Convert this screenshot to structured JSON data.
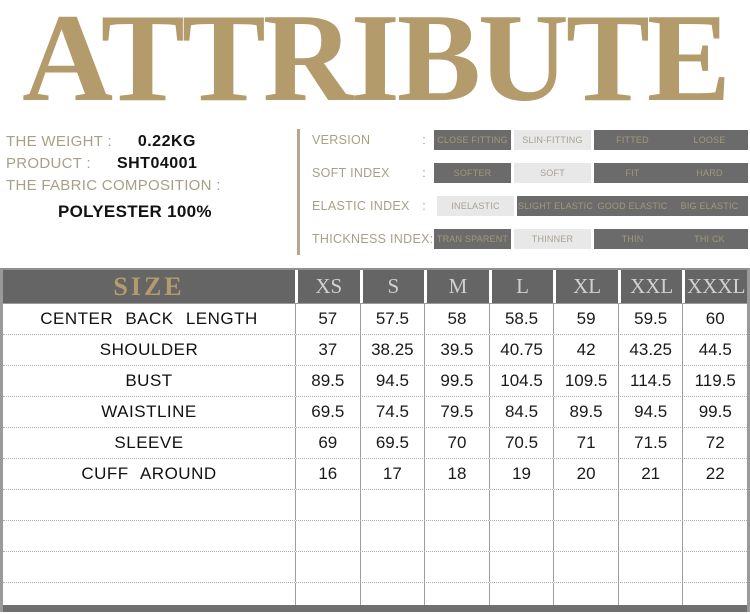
{
  "title": "ATTRIBUTE",
  "info": {
    "weight_label": "THE WEIGHT :",
    "weight_value": "0.22KG",
    "product_label": "PRODUCT :",
    "product_value": "SHT04001",
    "fabric_label": "THE FABRIC COMPOSITION :",
    "fabric_value": "POLYESTER 100%"
  },
  "attributes": {
    "rows": [
      {
        "label": "VERSION",
        "colon": ":",
        "options": [
          {
            "text": "CLOSE FITTING",
            "selected": false
          },
          {
            "text": "SLIN-FITTING",
            "selected": true
          },
          {
            "text": "FITTED",
            "selected": false
          },
          {
            "text": "LOOSE",
            "selected": false
          }
        ]
      },
      {
        "label": "SOFT INDEX",
        "colon": ":",
        "options": [
          {
            "text": "SOFTER",
            "selected": false
          },
          {
            "text": "SOFT",
            "selected": true
          },
          {
            "text": "FIT",
            "selected": false
          },
          {
            "text": "HARD",
            "selected": false
          }
        ]
      },
      {
        "label": "ELASTIC INDEX",
        "colon": ":",
        "options": [
          {
            "text": "INELASTIC",
            "selected": true
          },
          {
            "text": "SLIGHT ELASTIC",
            "selected": false
          },
          {
            "text": "GOOD ELASTIC",
            "selected": false
          },
          {
            "text": "BIG ELASTIC",
            "selected": false
          }
        ]
      },
      {
        "label": "THICKNESS INDEX",
        "colon": ":",
        "options": [
          {
            "text": "TRAN SPARENT",
            "selected": false
          },
          {
            "text": "THINNER",
            "selected": true
          },
          {
            "text": "THIN",
            "selected": false
          },
          {
            "text": "THI CK",
            "selected": false
          }
        ]
      }
    ]
  },
  "size_table": {
    "size_label": "SIZE",
    "columns": [
      "XS",
      "S",
      "M",
      "L",
      "XL",
      "XXL",
      "XXXL"
    ],
    "rows": [
      {
        "label": "CENTER BACK LENGTH",
        "values": [
          "57",
          "57.5",
          "58",
          "58.5",
          "59",
          "59.5",
          "60"
        ]
      },
      {
        "label": "SHOULDER",
        "values": [
          "37",
          "38.25",
          "39.5",
          "40.75",
          "42",
          "43.25",
          "44.5"
        ]
      },
      {
        "label": "BUST",
        "values": [
          "89.5",
          "94.5",
          "99.5",
          "104.5",
          "109.5",
          "114.5",
          "119.5"
        ]
      },
      {
        "label": "WAISTLINE",
        "values": [
          "69.5",
          "74.5",
          "79.5",
          "84.5",
          "89.5",
          "94.5",
          "99.5"
        ]
      },
      {
        "label": "SLEEVE",
        "values": [
          "69",
          "69.5",
          "70",
          "70.5",
          "71",
          "71.5",
          "72"
        ]
      },
      {
        "label": "CUFF AROUND",
        "values": [
          "16",
          "17",
          "18",
          "19",
          "20",
          "21",
          "22"
        ]
      }
    ],
    "empty_row_count": 4
  },
  "colors": {
    "title_tan": "#b49b6c",
    "label_tan": "#a7a088",
    "chip_dark_bg": "#6b6b6b",
    "chip_dark_text": "#a29878",
    "chip_light_bg": "#e8e8e8",
    "chip_light_text": "#a8a193",
    "table_header_bg": "#656565",
    "table_header_text": "#d0d0d0",
    "body_text": "#1a1a1a",
    "bottom_bar": "#6f6f6f"
  }
}
